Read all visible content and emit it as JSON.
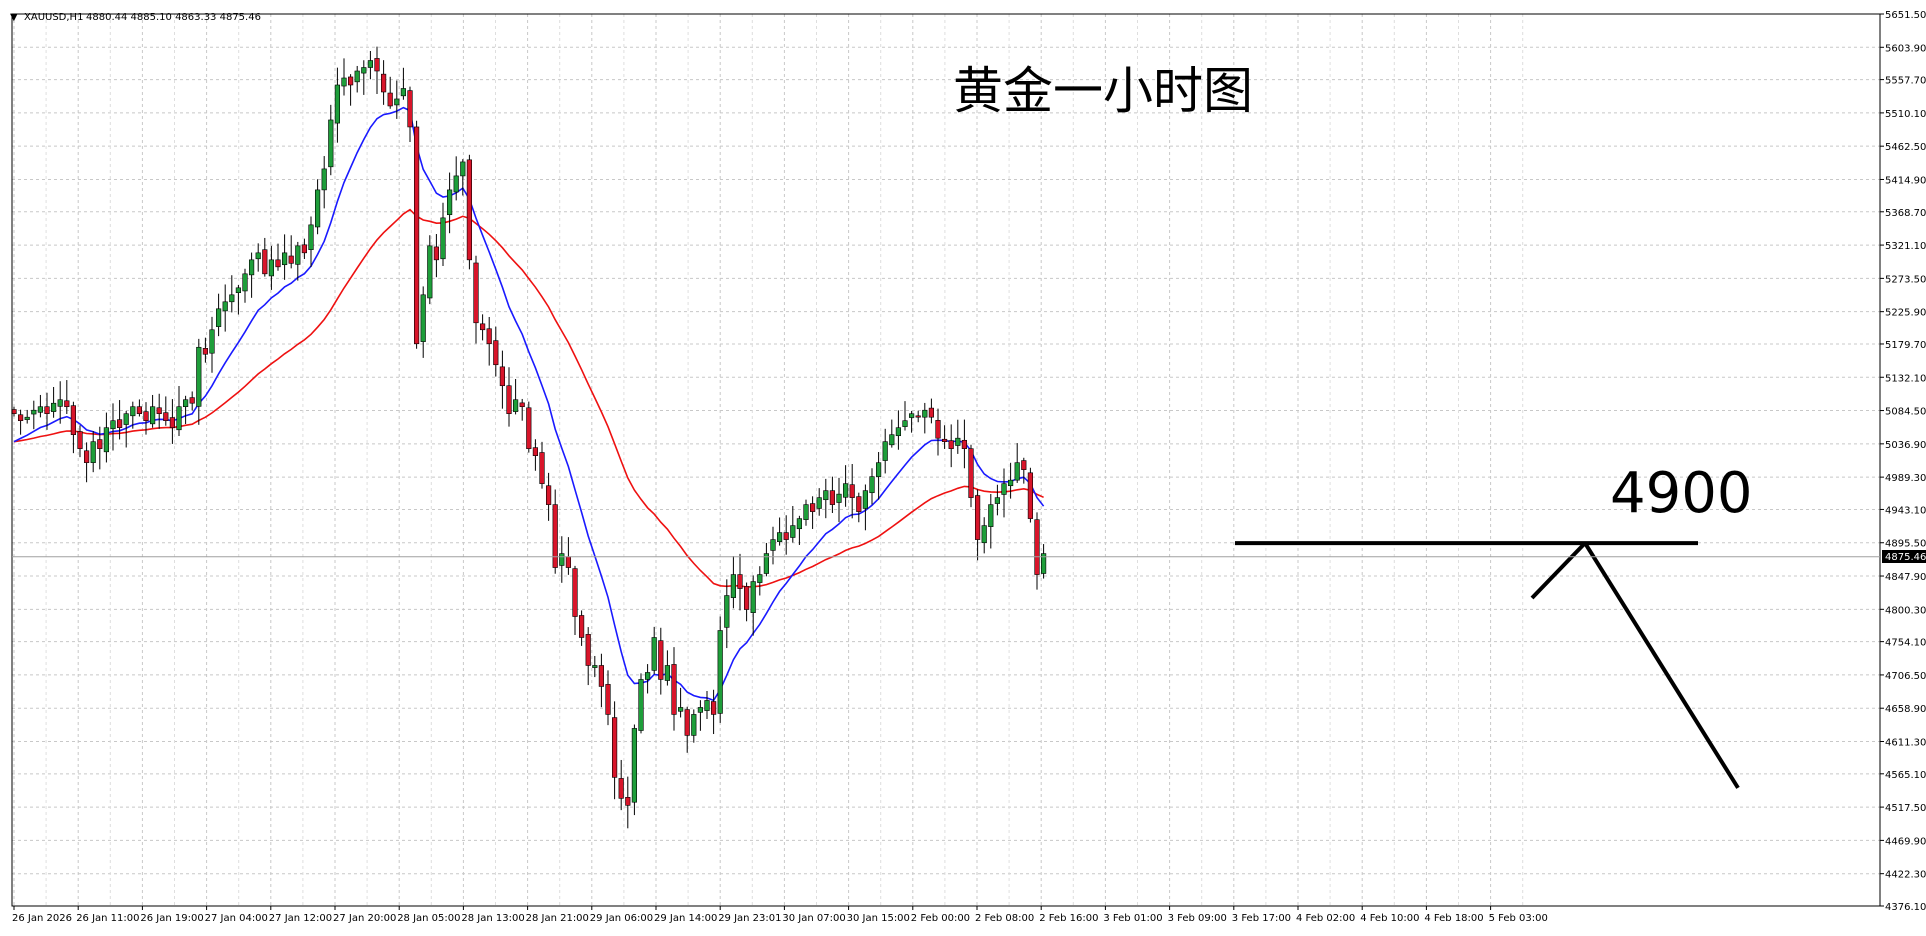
{
  "header": {
    "symbol": "XAUUSD,H1",
    "ohlc": "4880.44 4885.10 4863.33 4875.46"
  },
  "annotations": {
    "title": "黄金一小时图",
    "level_label": "4900"
  },
  "chart_data": {
    "type": "candlestick",
    "symbol": "XAUUSD",
    "timeframe": "H1",
    "title": "黄金一小时图",
    "ylim": [
      4376.1,
      5651.5
    ],
    "y_ticks": [
      "5651.50",
      "5603.90",
      "5557.70",
      "5510.10",
      "5462.50",
      "5414.90",
      "5368.70",
      "5321.10",
      "5273.50",
      "5225.90",
      "5179.70",
      "5132.10",
      "5084.50",
      "5036.90",
      "4989.30",
      "4943.10",
      "4895.50",
      "4847.90",
      "4800.30",
      "4754.10",
      "4706.50",
      "4658.90",
      "4611.30",
      "4565.10",
      "4517.50",
      "4469.90",
      "4422.30",
      "4376.10"
    ],
    "x_ticks": [
      "26 Jan 2026",
      "26 Jan 11:00",
      "26 Jan 19:00",
      "27 Jan 04:00",
      "27 Jan 12:00",
      "27 Jan 20:00",
      "28 Jan 05:00",
      "28 Jan 13:00",
      "28 Jan 21:00",
      "29 Jan 06:00",
      "29 Jan 14:00",
      "29 Jan 23:01",
      "30 Jan 07:00",
      "30 Jan 15:00",
      "2 Feb 00:00",
      "2 Feb 08:00",
      "2 Feb 16:00",
      "3 Feb 01:00",
      "3 Feb 09:00",
      "3 Feb 17:00",
      "4 Feb 02:00",
      "4 Feb 10:00",
      "4 Feb 18:00",
      "5 Feb 03:00"
    ],
    "current_price": "4875.46",
    "bull_color": "#1e9e3a",
    "bear_color": "#d8152a",
    "ma_fast_color": "#1a1aff",
    "ma_slow_color": "#ee1111",
    "grid": true,
    "horizontal_level": 4895,
    "projection": {
      "peak_price": 4895,
      "end_price": 4545
    },
    "close": [
      5080,
      5070,
      5075,
      5085,
      5090,
      5080,
      5095,
      5100,
      5090,
      5050,
      5030,
      5010,
      5040,
      5030,
      5060,
      5070,
      5060,
      5080,
      5090,
      5080,
      5070,
      5090,
      5080,
      5070,
      5060,
      5090,
      5100,
      5095,
      5175,
      5165,
      5200,
      5230,
      5240,
      5250,
      5260,
      5280,
      5300,
      5310,
      5280,
      5300,
      5290,
      5310,
      5295,
      5320,
      5310,
      5350,
      5400,
      5430,
      5500,
      5550,
      5560,
      5550,
      5570,
      5575,
      5585,
      5570,
      5540,
      5520,
      5530,
      5545,
      5490,
      5180,
      5250,
      5320,
      5300,
      5360,
      5400,
      5420,
      5440,
      5300,
      5210,
      5200,
      5180,
      5150,
      5120,
      5080,
      5100,
      5090,
      5030,
      5020,
      4980,
      4950,
      4860,
      4880,
      4860,
      4790,
      4760,
      4720,
      4720,
      4690,
      4650,
      4560,
      4530,
      4520,
      4630,
      4700,
      4710,
      4760,
      4700,
      4720,
      4650,
      4660,
      4620,
      4650,
      4660,
      4670,
      4650,
      4770,
      4820,
      4850,
      4830,
      4800,
      4840,
      4850,
      4880,
      4900,
      4910,
      4900,
      4920,
      4930,
      4950,
      4940,
      4960,
      4970,
      4950,
      4965,
      4980,
      4960,
      4940,
      4970,
      4990,
      5010,
      5040,
      5050,
      5060,
      5070,
      5080,
      5075,
      5085,
      5075,
      5045,
      5040,
      5030,
      5045,
      5030,
      4960,
      4900,
      4920,
      4950,
      4960,
      4980,
      4985,
      5010,
      5000,
      4930,
      4850,
      4880
    ]
  }
}
